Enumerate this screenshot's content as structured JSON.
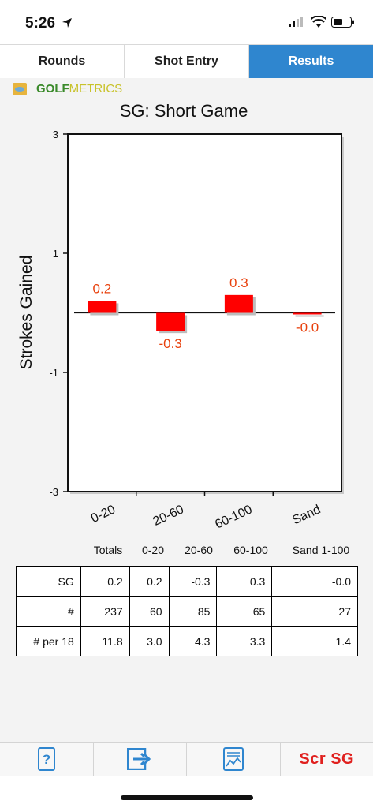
{
  "status_bar": {
    "time": "5:26"
  },
  "tabs": [
    {
      "label": "Rounds"
    },
    {
      "label": "Shot Entry"
    },
    {
      "label": "Results"
    }
  ],
  "brand": {
    "golf": "GOLF",
    "metrics": "METRICS"
  },
  "chart_data": {
    "type": "bar",
    "title": "SG: Short Game",
    "ylabel": "Strokes Gained",
    "xlabel": "",
    "categories": [
      "0-20",
      "20-60",
      "60-100",
      "Sand"
    ],
    "values": [
      0.2,
      -0.3,
      0.3,
      -0.02
    ],
    "value_labels": [
      "0.2",
      "-0.3",
      "0.3",
      "-0.0"
    ],
    "ylim": [
      -3,
      3
    ],
    "yticks": [
      3,
      1,
      -1,
      -3
    ],
    "bar_color": "#ff0000",
    "label_color": "#e8400c"
  },
  "table": {
    "columns": [
      "Totals",
      "0-20",
      "20-60",
      "60-100",
      "Sand 1-100"
    ],
    "rows": [
      {
        "label": "SG",
        "cells": [
          "0.2",
          "0.2",
          "-0.3",
          "0.3",
          "-0.0"
        ]
      },
      {
        "label": "#",
        "cells": [
          "237",
          "60",
          "85",
          "65",
          "27"
        ]
      },
      {
        "label": "# per 18",
        "cells": [
          "11.8",
          "3.0",
          "4.3",
          "3.3",
          "1.4"
        ]
      }
    ]
  },
  "bottom_bar": {
    "scr_label": "Scr SG"
  },
  "icons": [
    "help-icon",
    "export-icon",
    "report-icon"
  ]
}
